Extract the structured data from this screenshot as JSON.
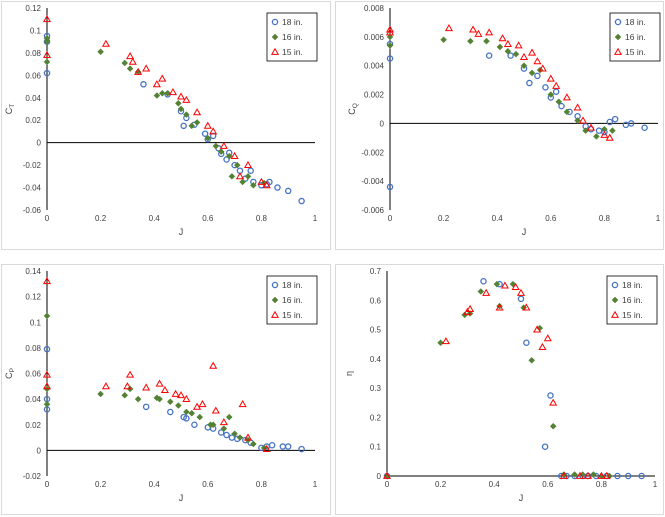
{
  "colors": {
    "18 in.": "#4472c4",
    "16 in.": "#548235",
    "15 in.": "#ff0000",
    "axis": "#000000",
    "frame": "#d9d9d9"
  },
  "markers": {
    "18 in.": "circle",
    "16 in.": "diamond",
    "15 in.": "triangle"
  },
  "chart_data": [
    {
      "type": "scatter",
      "title": "",
      "xlabel": "J",
      "ylabel": "CT",
      "ylabel_main": "C",
      "ylabel_sub": "T",
      "xlim": [
        0,
        1
      ],
      "ylim": [
        -0.06,
        0.12
      ],
      "xticks": [
        "0",
        "0.2",
        "0.4",
        "0.6",
        "0.8",
        "1"
      ],
      "yticks": [
        "-0.06",
        "-0.04",
        "-0.02",
        "0",
        "0.02",
        "0.04",
        "0.06",
        "0.08",
        "0.1",
        "0.12"
      ],
      "legend": {
        "position": "top-right",
        "entries": [
          "18 in.",
          "16 in.",
          "15 in."
        ]
      },
      "series": [
        {
          "name": "18 in.",
          "x": [
            0,
            0,
            0,
            0.36,
            0.45,
            0.5,
            0.51,
            0.52,
            0.55,
            0.59,
            0.6,
            0.62,
            0.64,
            0.65,
            0.67,
            0.68,
            0.7,
            0.72,
            0.74,
            0.76,
            0.77,
            0.8,
            0.82,
            0.83,
            0.86,
            0.9,
            0.95
          ],
          "y": [
            0.062,
            0.09,
            0.095,
            0.052,
            0.043,
            0.028,
            0.015,
            0.022,
            0.016,
            0.008,
            0.003,
            0.006,
            -0.005,
            -0.01,
            -0.015,
            -0.009,
            -0.02,
            -0.025,
            -0.032,
            -0.025,
            -0.035,
            -0.038,
            -0.037,
            -0.035,
            -0.04,
            -0.043,
            -0.052
          ]
        },
        {
          "name": "16 in.",
          "x": [
            0,
            0,
            0,
            0.2,
            0.29,
            0.31,
            0.34,
            0.41,
            0.43,
            0.45,
            0.49,
            0.5,
            0.52,
            0.54,
            0.56,
            0.6,
            0.63,
            0.65,
            0.68,
            0.69,
            0.71,
            0.73,
            0.75,
            0.77,
            0.81
          ],
          "y": [
            0.072,
            0.09,
            0.093,
            0.081,
            0.071,
            0.066,
            0.063,
            0.042,
            0.044,
            0.044,
            0.035,
            0.03,
            0.025,
            0.015,
            0.018,
            0.004,
            -0.003,
            -0.008,
            -0.012,
            -0.03,
            -0.02,
            -0.035,
            -0.03,
            -0.038,
            -0.036
          ]
        },
        {
          "name": "15 in.",
          "x": [
            0,
            0,
            0.22,
            0.31,
            0.32,
            0.34,
            0.37,
            0.41,
            0.43,
            0.47,
            0.5,
            0.52,
            0.56,
            0.6,
            0.62,
            0.66,
            0.7,
            0.72,
            0.75,
            0.8,
            0.82
          ],
          "y": [
            0.11,
            0.078,
            0.088,
            0.077,
            0.072,
            0.063,
            0.066,
            0.052,
            0.057,
            0.045,
            0.041,
            0.038,
            0.027,
            0.015,
            0.01,
            -0.003,
            -0.012,
            -0.03,
            -0.02,
            -0.035,
            -0.038
          ]
        }
      ]
    },
    {
      "type": "scatter",
      "title": "",
      "xlabel": "J",
      "ylabel": "CQ",
      "ylabel_main": "C",
      "ylabel_sub": "Q",
      "xlim": [
        0,
        1
      ],
      "ylim": [
        -0.006,
        0.008
      ],
      "xticks": [
        "0",
        "0.2",
        "0.4",
        "0.6",
        "0.8",
        "1"
      ],
      "yticks": [
        "-0.006",
        "-0.004",
        "-0.002",
        "0",
        "0.002",
        "0.004",
        "0.006",
        "0.008"
      ],
      "legend": {
        "position": "top-right",
        "entries": [
          "18 in.",
          "16 in.",
          "15 in."
        ]
      },
      "series": [
        {
          "name": "18 in.",
          "x": [
            0,
            0,
            0,
            0.37,
            0.45,
            0.5,
            0.52,
            0.55,
            0.58,
            0.6,
            0.62,
            0.64,
            0.67,
            0.7,
            0.73,
            0.75,
            0.78,
            0.8,
            0.82,
            0.84,
            0.88,
            0.9,
            0.95
          ],
          "y": [
            -0.0044,
            0.0045,
            0.0055,
            0.0047,
            0.0047,
            0.0038,
            0.0028,
            0.0033,
            0.0025,
            0.0018,
            0.0022,
            0.0012,
            0.0008,
            0.0005,
            -0.0002,
            -0.0004,
            -0.0005,
            -0.0006,
            0.0001,
            0.0003,
            -0.0001,
            0.0,
            -0.0003
          ]
        },
        {
          "name": "16 in.",
          "x": [
            0,
            0,
            0.2,
            0.3,
            0.36,
            0.41,
            0.44,
            0.47,
            0.5,
            0.53,
            0.56,
            0.6,
            0.63,
            0.66,
            0.7,
            0.73,
            0.77,
            0.8,
            0.83
          ],
          "y": [
            0.0054,
            0.006,
            0.0058,
            0.0057,
            0.0057,
            0.0053,
            0.005,
            0.0048,
            0.004,
            0.0035,
            0.0037,
            0.002,
            0.0015,
            0.0008,
            0.0002,
            -0.0005,
            -0.0009,
            -0.0004,
            -0.0005
          ]
        },
        {
          "name": "15 in.",
          "x": [
            0,
            0,
            0.22,
            0.31,
            0.33,
            0.37,
            0.42,
            0.44,
            0.48,
            0.5,
            0.53,
            0.55,
            0.57,
            0.6,
            0.62,
            0.66,
            0.7,
            0.72,
            0.75,
            0.8,
            0.82
          ],
          "y": [
            0.0063,
            0.0065,
            0.0066,
            0.0065,
            0.0062,
            0.0063,
            0.0059,
            0.0055,
            0.0054,
            0.0046,
            0.0049,
            0.0043,
            0.0038,
            0.0031,
            0.0026,
            0.0018,
            0.0011,
            0.0002,
            -0.0003,
            -0.0008,
            -0.001
          ]
        }
      ]
    },
    {
      "type": "scatter",
      "title": "",
      "xlabel": "J",
      "ylabel": "CP",
      "ylabel_main": "C",
      "ylabel_sub": "P",
      "xlim": [
        0,
        1
      ],
      "ylim": [
        -0.02,
        0.14
      ],
      "xticks": [
        "0",
        "0.2",
        "0.4",
        "0.6",
        "0.8",
        "1"
      ],
      "yticks": [
        "-0.02",
        "0",
        "0.02",
        "0.04",
        "0.06",
        "0.08",
        "0.1",
        "0.12",
        "0.14"
      ],
      "legend": {
        "position": "top-right",
        "entries": [
          "18 in.",
          "16 in.",
          "15 in."
        ]
      },
      "series": [
        {
          "name": "18 in.",
          "x": [
            0,
            0,
            0,
            0.37,
            0.46,
            0.51,
            0.52,
            0.55,
            0.6,
            0.62,
            0.65,
            0.67,
            0.69,
            0.71,
            0.74,
            0.76,
            0.8,
            0.82,
            0.84,
            0.88,
            0.9,
            0.95
          ],
          "y": [
            0.079,
            0.032,
            0.04,
            0.034,
            0.03,
            0.026,
            0.025,
            0.02,
            0.018,
            0.017,
            0.014,
            0.012,
            0.01,
            0.009,
            0.008,
            0.006,
            0.002,
            0.003,
            0.004,
            0.003,
            0.003,
            0.001
          ]
        },
        {
          "name": "16 in.",
          "x": [
            0,
            0,
            0,
            0.2,
            0.29,
            0.31,
            0.34,
            0.41,
            0.42,
            0.46,
            0.49,
            0.52,
            0.54,
            0.57,
            0.61,
            0.62,
            0.66,
            0.68,
            0.7,
            0.72,
            0.75,
            0.77,
            0.81
          ],
          "y": [
            0.105,
            0.048,
            0.036,
            0.044,
            0.043,
            0.048,
            0.04,
            0.041,
            0.04,
            0.038,
            0.035,
            0.03,
            0.029,
            0.026,
            0.02,
            0.02,
            0.017,
            0.026,
            0.013,
            0.01,
            0.008,
            0.005,
            0.002
          ]
        },
        {
          "name": "15 in.",
          "x": [
            0,
            0,
            0,
            0.22,
            0.3,
            0.31,
            0.37,
            0.42,
            0.44,
            0.48,
            0.5,
            0.52,
            0.56,
            0.58,
            0.62,
            0.63,
            0.66,
            0.73,
            0.75,
            0.82
          ],
          "y": [
            0.132,
            0.059,
            0.05,
            0.05,
            0.05,
            0.059,
            0.049,
            0.052,
            0.047,
            0.044,
            0.043,
            0.04,
            0.034,
            0.036,
            0.066,
            0.031,
            0.022,
            0.036,
            0.01,
            0.001
          ]
        }
      ]
    },
    {
      "type": "scatter",
      "title": "",
      "xlabel": "J",
      "ylabel": "η",
      "ylabel_main": "η",
      "ylabel_sub": "",
      "xlim": [
        0,
        1
      ],
      "ylim": [
        0,
        0.7
      ],
      "xticks": [
        "0",
        "0.2",
        "0.4",
        "0.6",
        "0.8",
        "1"
      ],
      "yticks": [
        "0",
        "0.1",
        "0.2",
        "0.3",
        "0.4",
        "0.5",
        "0.6",
        "0.7"
      ],
      "legend": {
        "position": "top-right",
        "entries": [
          "18 in.",
          "16 in.",
          "15 in."
        ]
      },
      "series": [
        {
          "name": "18 in.",
          "x": [
            0,
            0.36,
            0.42,
            0.5,
            0.52,
            0.59,
            0.61,
            0.65,
            0.67,
            0.7,
            0.73,
            0.75,
            0.78,
            0.82,
            0.86,
            0.9,
            0.95
          ],
          "y": [
            0.0,
            0.665,
            0.655,
            0.605,
            0.455,
            0.1,
            0.275,
            0.0,
            0.0,
            0.0,
            0.0,
            0.0,
            0.0,
            0.0,
            0.0,
            0.0,
            0.0
          ]
        },
        {
          "name": "16 in.",
          "x": [
            0,
            0.2,
            0.29,
            0.31,
            0.35,
            0.41,
            0.42,
            0.47,
            0.51,
            0.54,
            0.57,
            0.62,
            0.66,
            0.7,
            0.73,
            0.77,
            0.8,
            0.83
          ],
          "y": [
            0.0,
            0.455,
            0.55,
            0.555,
            0.63,
            0.655,
            0.58,
            0.655,
            0.575,
            0.395,
            0.505,
            0.17,
            0.005,
            0.005,
            0.005,
            0.005,
            0.0,
            0.0
          ]
        },
        {
          "name": "15 in.",
          "x": [
            0,
            0.22,
            0.3,
            0.31,
            0.37,
            0.42,
            0.44,
            0.48,
            0.5,
            0.52,
            0.56,
            0.58,
            0.6,
            0.62,
            0.66,
            0.72,
            0.75,
            0.8,
            0.82
          ],
          "y": [
            0.0,
            0.46,
            0.56,
            0.57,
            0.625,
            0.575,
            0.65,
            0.645,
            0.625,
            0.575,
            0.5,
            0.44,
            0.47,
            0.25,
            0.0,
            0.0,
            0.0,
            0.0,
            0.0
          ]
        }
      ]
    }
  ]
}
